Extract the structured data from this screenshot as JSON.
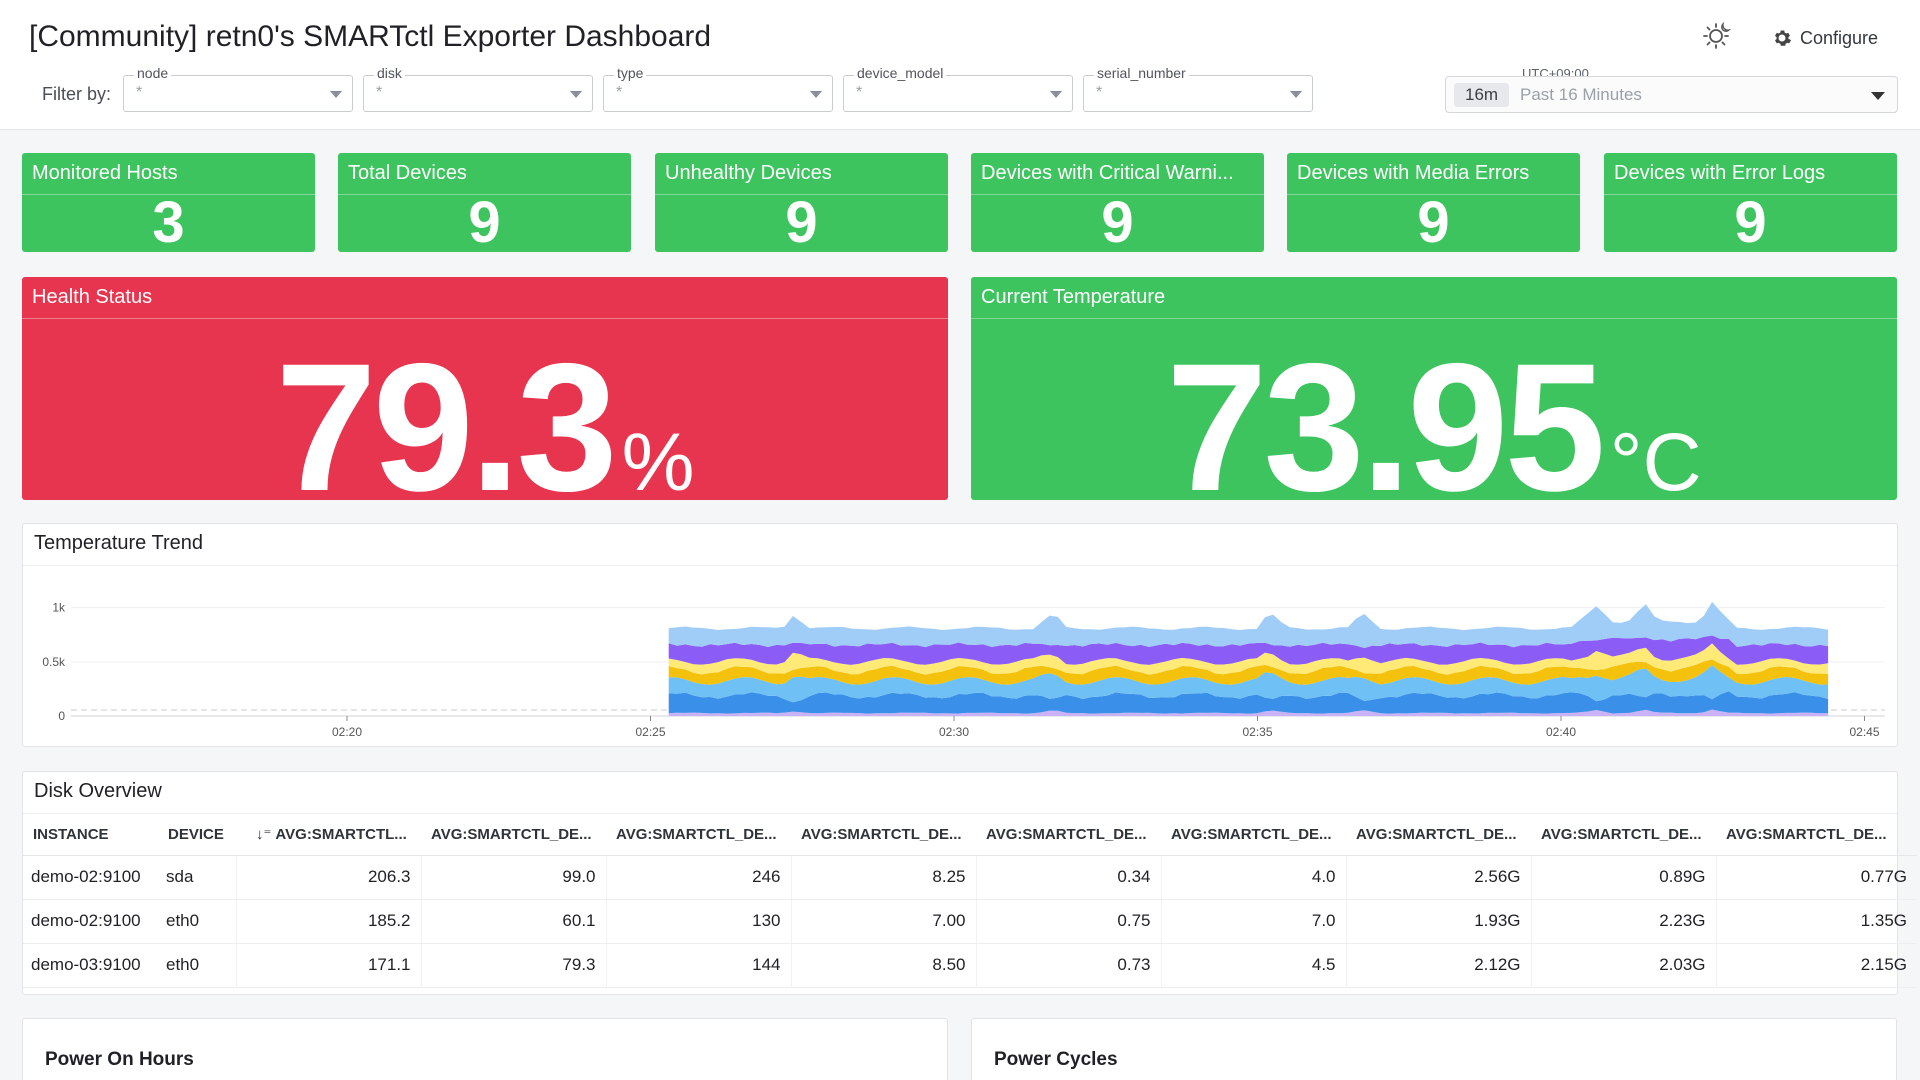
{
  "dashboard": {
    "title": "[Community] retn0's SMARTctl Exporter Dashboard",
    "configure_label": "Configure",
    "filter_label": "Filter by:",
    "filters": [
      {
        "name": "node",
        "value": "*"
      },
      {
        "name": "disk",
        "value": "*"
      },
      {
        "name": "type",
        "value": "*"
      },
      {
        "name": "device_model",
        "value": "*"
      },
      {
        "name": "serial_number",
        "value": "*"
      }
    ],
    "timepicker": {
      "timezone": "UTC+09:00",
      "chip": "16m",
      "range": "Past 16 Minutes"
    }
  },
  "stats": [
    {
      "title": "Monitored Hosts",
      "value": "3",
      "color": "#3ec45f"
    },
    {
      "title": "Total Devices",
      "value": "9",
      "color": "#3ec45f"
    },
    {
      "title": "Unhealthy Devices",
      "value": "9",
      "color": "#3ec45f"
    },
    {
      "title": "Devices with Critical Warni...",
      "value": "9",
      "color": "#3ec45f"
    },
    {
      "title": "Devices with Media Errors",
      "value": "9",
      "color": "#3ec45f"
    },
    {
      "title": "Devices with Error Logs",
      "value": "9",
      "color": "#3ec45f"
    }
  ],
  "health": {
    "title": "Health Status",
    "value": "79.3",
    "unit": "%",
    "color": "#e8354f"
  },
  "temperature": {
    "title": "Current Temperature",
    "value": "73.95",
    "unit": "°C",
    "color": "#3ec45f"
  },
  "trend": {
    "title": "Temperature Trend",
    "chart_data": {
      "type": "area",
      "stacked": true,
      "y_ticks": [
        "0",
        "0.5k",
        "1k"
      ],
      "ylim": [
        0,
        1200
      ],
      "x_ticks": [
        "02:20",
        "02:25",
        "02:30",
        "02:35",
        "02:40",
        "02:45"
      ],
      "data_start": "02:25:20",
      "data_end": "02:44:40",
      "series_colors": [
        "#c9b2f5",
        "#3a8fe8",
        "#6fc0f5",
        "#f4c20d",
        "#ffe977",
        "#8b5cf6",
        "#a0ccf8"
      ],
      "approx_stack_total": 900,
      "grid": true
    }
  },
  "disk_overview": {
    "title": "Disk Overview",
    "columns": [
      "INSTANCE",
      "DEVICE",
      "AVG:SMARTCTL...",
      "AVG:SMARTCTL_DE...",
      "AVG:SMARTCTL_DE...",
      "AVG:SMARTCTL_DE...",
      "AVG:SMARTCTL_DE...",
      "AVG:SMARTCTL_DE...",
      "AVG:SMARTCTL_DE...",
      "AVG:SMARTCTL_DE...",
      "AVG:SMARTCTL_DE..."
    ],
    "rows": [
      [
        "demo-02:9100",
        "sda",
        "206.3",
        "99.0",
        "246",
        "8.25",
        "0.34",
        "4.0",
        "2.56G",
        "0.89G",
        "0.77G"
      ],
      [
        "demo-02:9100",
        "eth0",
        "185.2",
        "60.1",
        "130",
        "7.00",
        "0.75",
        "7.0",
        "1.93G",
        "2.23G",
        "1.35G"
      ],
      [
        "demo-03:9100",
        "eth0",
        "171.1",
        "79.3",
        "144",
        "8.50",
        "0.73",
        "4.5",
        "2.12G",
        "2.03G",
        "2.15G"
      ]
    ]
  },
  "bottom_panels": [
    {
      "title": "Power On Hours"
    },
    {
      "title": "Power Cycles"
    }
  ]
}
